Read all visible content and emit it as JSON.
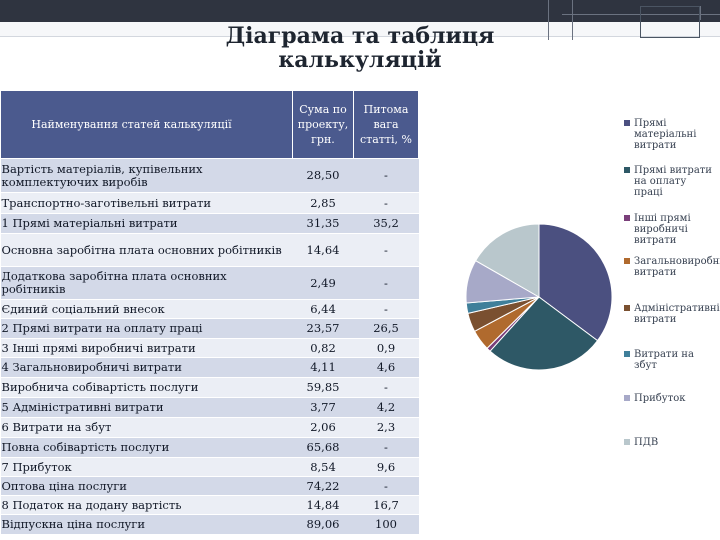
{
  "slide": {
    "title_line1": "Діаграма та таблиця",
    "title_line2": "калькуляцій"
  },
  "table": {
    "headers": [
      "Найменування статей калькуляції",
      "Сума по проекту, грн.",
      "Питома вага статті, %"
    ],
    "rows": [
      {
        "name": "Вартість матеріалів, купівельних комплектуючих виробів",
        "sum": "28,50",
        "share": "-"
      },
      {
        "name": "Транспортно-заготівельні витрати",
        "sum": "2,85",
        "share": "-"
      },
      {
        "name": "1 Прямі матеріальні витрати",
        "sum": "31,35",
        "share": "35,2"
      },
      {
        "name": "Основна заробітна плата основних робітників",
        "sum": "14,64",
        "share": "-"
      },
      {
        "name": "Додаткова заробітна плата основних робітників",
        "sum": "2,49",
        "share": "-"
      },
      {
        "name": "Єдиний соціальний внесок",
        "sum": "6,44",
        "share": "-"
      },
      {
        "name": "2 Прямі витрати на оплату праці",
        "sum": "23,57",
        "share": "26,5"
      },
      {
        "name": "3 Інші прямі виробничі витрати",
        "sum": "0,82",
        "share": "0,9"
      },
      {
        "name": "4 Загальновиробничі витрати",
        "sum": "4,11",
        "share": "4,6"
      },
      {
        "name": "Виробнича собівартість послуги",
        "sum": "59,85",
        "share": "-"
      },
      {
        "name": "5 Адміністративні витрати",
        "sum": "3,77",
        "share": "4,2"
      },
      {
        "name": "6 Витрати на збут",
        "sum": "2,06",
        "share": "2,3"
      },
      {
        "name": "Повна собівартість послуги",
        "sum": "65,68",
        "share": "-"
      },
      {
        "name": "7 Прибуток",
        "sum": "8,54",
        "share": "9,6"
      },
      {
        "name": "Оптова ціна послуги",
        "sum": "74,22",
        "share": "-"
      },
      {
        "name": "8 Податок на додану вартість",
        "sum": "14,84",
        "share": "16,7"
      },
      {
        "name": "Відпускна ціна послуги",
        "sum": "89,06",
        "share": "100"
      }
    ]
  },
  "chart_data": {
    "type": "pie",
    "categories": [
      "Прямі матеріальні витрати",
      "Прямі витрати на оплату праці",
      "Інші прямі виробничі витрати",
      "Загальновиробничі витрати",
      "Адміністративні витрати",
      "Витрати на збут",
      "Прибуток",
      "ПДВ"
    ],
    "values": [
      35.2,
      26.5,
      0.9,
      4.6,
      4.2,
      2.3,
      9.6,
      16.7
    ],
    "colors": [
      "#4b5080",
      "#2e5866",
      "#7a3f7a",
      "#b06a2e",
      "#7a5030",
      "#3f7f9a",
      "#a7a9c8",
      "#b9c7cc"
    ],
    "legend_position": "right"
  }
}
